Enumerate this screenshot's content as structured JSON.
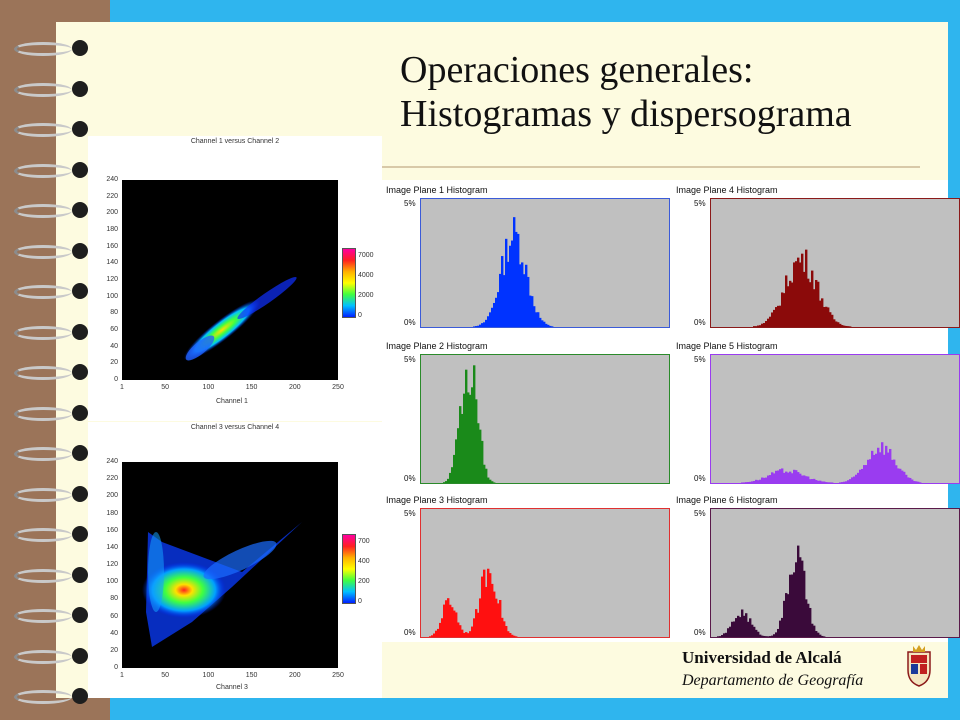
{
  "slide": {
    "title_line1": "Operaciones generales:",
    "title_line2": "Histogramas y dispersograma"
  },
  "scatter_plots": [
    {
      "caption": "Channel 1 versus Channel 2",
      "y_ticks": [
        "240",
        "220",
        "200",
        "180",
        "160",
        "140",
        "120",
        "100",
        "80",
        "60",
        "40",
        "20",
        "0"
      ],
      "x_ticks": [
        "1",
        "50",
        "100",
        "150",
        "200",
        "250"
      ],
      "x_label": "Channel 1",
      "legend_ticks": [
        "7000",
        "4000",
        "2000",
        "0"
      ]
    },
    {
      "caption": "Channel 3 versus Channel 4",
      "y_ticks": [
        "240",
        "220",
        "200",
        "180",
        "160",
        "140",
        "120",
        "100",
        "80",
        "60",
        "40",
        "20",
        "0"
      ],
      "x_ticks": [
        "1",
        "50",
        "100",
        "150",
        "200",
        "250"
      ],
      "x_label": "Channel 3",
      "legend_ticks": [
        "700",
        "400",
        "200",
        "0"
      ]
    }
  ],
  "histograms": [
    {
      "title": "Image Plane 1 Histogram",
      "top_label": "5%",
      "bottom_label": "0%",
      "color": "#0033ff",
      "frame_color": "#3b5bd8"
    },
    {
      "title": "Image Plane 4 Histogram",
      "top_label": "5%",
      "bottom_label": "0%",
      "color": "#8b0a0a",
      "frame_color": "#8b1a1a"
    },
    {
      "title": "Image Plane 2 Histogram",
      "top_label": "5%",
      "bottom_label": "0%",
      "color": "#1a8a1a",
      "frame_color": "#2a8a2a"
    },
    {
      "title": "Image Plane 5 Histogram",
      "top_label": "5%",
      "bottom_label": "0%",
      "color": "#9a3cf0",
      "frame_color": "#9a3cf0"
    },
    {
      "title": "Image Plane 3 Histogram",
      "top_label": "5%",
      "bottom_label": "0%",
      "color": "#ff1010",
      "frame_color": "#e03030"
    },
    {
      "title": "Image Plane 6 Histogram",
      "top_label": "5%",
      "bottom_label": "0%",
      "color": "#3a0a3a",
      "frame_color": "#5a1a4a"
    }
  ],
  "footer": {
    "university": "Universidad de Alcalá",
    "department": "Departamento de Geografía"
  },
  "colors": {
    "background_cyan": "#2fb5ee",
    "page_cream": "#fdfbe0",
    "binding_brown": "#9b7459",
    "histogram_background": "#c0c0c0"
  },
  "icons": [
    "spiral-binding-ring-icon",
    "university-crest-icon"
  ]
}
